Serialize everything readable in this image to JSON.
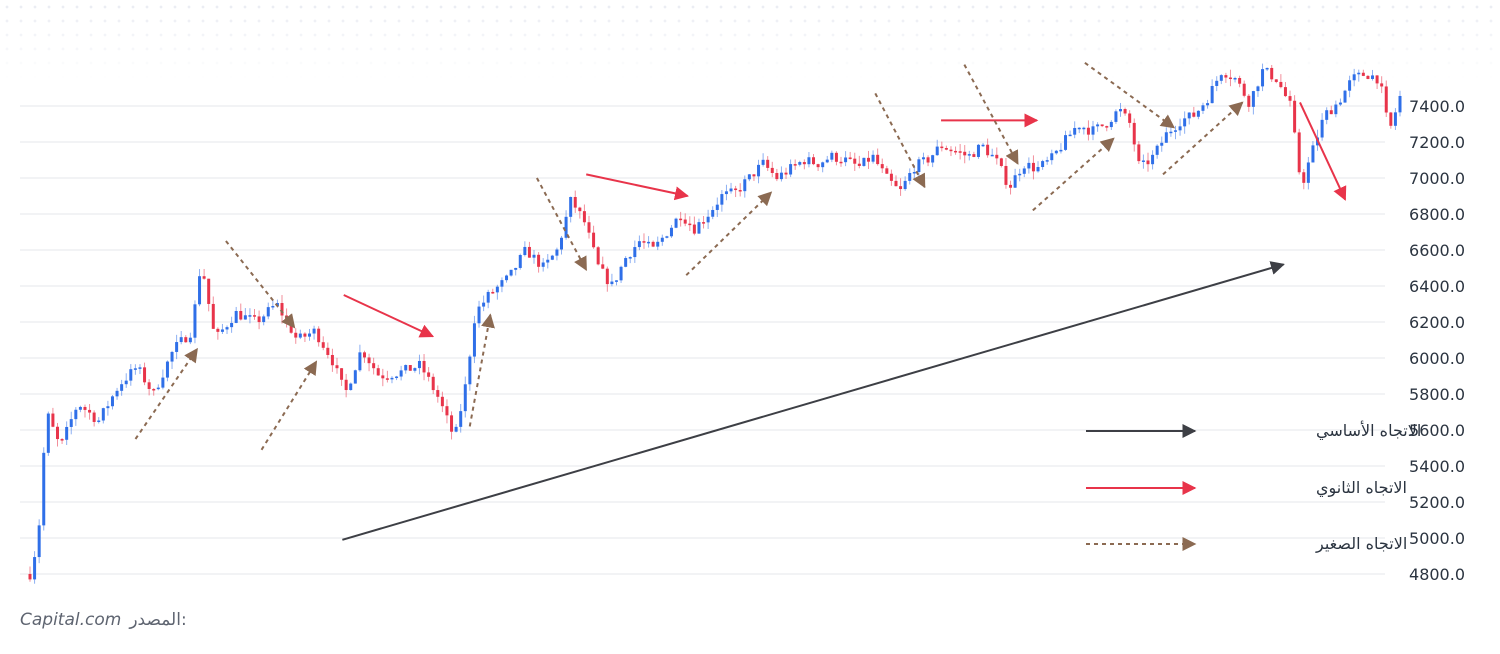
{
  "source": {
    "brand": "Capital.com",
    "label": "المصدر:"
  },
  "legend": [
    {
      "label": "الاتجاه الأساسي",
      "style": "solid",
      "color": "#3d3f45"
    },
    {
      "label": "الاتجاه الثانوي",
      "style": "solid",
      "color": "#e8344a"
    },
    {
      "label": "الاتجاه الصغير",
      "style": "dashed",
      "color": "#8b6a52"
    }
  ],
  "colors": {
    "up": "#2f6fe8",
    "down": "#e8344a",
    "grid": "#e5e7eb",
    "primary": "#3d3f45",
    "secondary": "#e8344a",
    "minor": "#8b6a52"
  },
  "chart_data": {
    "type": "candlestick",
    "y_ticks": [
      "7400.0",
      "7200.0",
      "7000.0",
      "6800.0",
      "6600.0",
      "6400.0",
      "6200.0",
      "6000.0",
      "5800.0",
      "5600.0",
      "5400.0",
      "5200.0",
      "5000.0",
      "4800.0"
    ],
    "ylim": [
      4780,
      7470
    ],
    "xlim": [
      0,
      1
    ],
    "grid": true,
    "legend_position": "bottom-right",
    "anchors": [
      [
        0.0,
        4800
      ],
      [
        0.006,
        5000
      ],
      [
        0.012,
        5700
      ],
      [
        0.022,
        5500
      ],
      [
        0.035,
        5750
      ],
      [
        0.05,
        5650
      ],
      [
        0.065,
        5850
      ],
      [
        0.078,
        5950
      ],
      [
        0.09,
        5800
      ],
      [
        0.105,
        6050
      ],
      [
        0.118,
        6150
      ],
      [
        0.125,
        6540
      ],
      [
        0.135,
        6100
      ],
      [
        0.15,
        6250
      ],
      [
        0.165,
        6200
      ],
      [
        0.18,
        6300
      ],
      [
        0.195,
        6100
      ],
      [
        0.208,
        6150
      ],
      [
        0.22,
        6000
      ],
      [
        0.23,
        5800
      ],
      [
        0.242,
        6050
      ],
      [
        0.255,
        5900
      ],
      [
        0.27,
        5920
      ],
      [
        0.285,
        5960
      ],
      [
        0.298,
        5780
      ],
      [
        0.31,
        5550
      ],
      [
        0.318,
        5850
      ],
      [
        0.325,
        6250
      ],
      [
        0.335,
        6350
      ],
      [
        0.35,
        6450
      ],
      [
        0.362,
        6600
      ],
      [
        0.375,
        6500
      ],
      [
        0.385,
        6600
      ],
      [
        0.395,
        6880
      ],
      [
        0.405,
        6750
      ],
      [
        0.415,
        6500
      ],
      [
        0.425,
        6400
      ],
      [
        0.435,
        6560
      ],
      [
        0.445,
        6650
      ],
      [
        0.455,
        6600
      ],
      [
        0.465,
        6700
      ],
      [
        0.475,
        6800
      ],
      [
        0.485,
        6720
      ],
      [
        0.495,
        6800
      ],
      [
        0.505,
        6900
      ],
      [
        0.515,
        6920
      ],
      [
        0.525,
        7000
      ],
      [
        0.535,
        7080
      ],
      [
        0.545,
        7000
      ],
      [
        0.555,
        7050
      ],
      [
        0.565,
        7100
      ],
      [
        0.575,
        7080
      ],
      [
        0.585,
        7120
      ],
      [
        0.595,
        7100
      ],
      [
        0.605,
        7060
      ],
      [
        0.615,
        7120
      ],
      [
        0.625,
        7000
      ],
      [
        0.635,
        6920
      ],
      [
        0.645,
        7060
      ],
      [
        0.655,
        7100
      ],
      [
        0.665,
        7180
      ],
      [
        0.675,
        7150
      ],
      [
        0.685,
        7120
      ],
      [
        0.695,
        7180
      ],
      [
        0.705,
        7100
      ],
      [
        0.715,
        6950
      ],
      [
        0.725,
        7080
      ],
      [
        0.735,
        7050
      ],
      [
        0.745,
        7100
      ],
      [
        0.755,
        7200
      ],
      [
        0.765,
        7300
      ],
      [
        0.775,
        7260
      ],
      [
        0.785,
        7300
      ],
      [
        0.795,
        7380
      ],
      [
        0.803,
        7300
      ],
      [
        0.81,
        7050
      ],
      [
        0.82,
        7120
      ],
      [
        0.83,
        7250
      ],
      [
        0.84,
        7320
      ],
      [
        0.85,
        7350
      ],
      [
        0.86,
        7450
      ],
      [
        0.87,
        7600
      ],
      [
        0.88,
        7550
      ],
      [
        0.89,
        7420
      ],
      [
        0.9,
        7600
      ],
      [
        0.91,
        7550
      ],
      [
        0.92,
        7400
      ],
      [
        0.928,
        6950
      ],
      [
        0.936,
        7150
      ],
      [
        0.945,
        7350
      ],
      [
        0.955,
        7420
      ],
      [
        0.965,
        7550
      ],
      [
        0.975,
        7580
      ],
      [
        0.985,
        7550
      ],
      [
        0.992,
        7250
      ],
      [
        1.0,
        7450
      ]
    ],
    "primary_trend": [
      [
        0.228,
        4990
      ],
      [
        0.915,
        6520
      ]
    ],
    "secondary_trends": [
      [
        [
          0.229,
          6350
        ],
        [
          0.294,
          6120
        ]
      ],
      [
        [
          0.406,
          7020
        ],
        [
          0.48,
          6900
        ]
      ],
      [
        [
          0.665,
          7320
        ],
        [
          0.735,
          7320
        ]
      ],
      [
        [
          0.927,
          7420
        ],
        [
          0.96,
          6880
        ]
      ]
    ],
    "minor_trends": [
      [
        [
          0.077,
          5550
        ],
        [
          0.122,
          6050
        ]
      ],
      [
        [
          0.143,
          6650
        ],
        [
          0.193,
          6170
        ]
      ],
      [
        [
          0.169,
          5490
        ],
        [
          0.209,
          5980
        ]
      ],
      [
        [
          0.321,
          5620
        ],
        [
          0.336,
          6240
        ]
      ],
      [
        [
          0.37,
          7000
        ],
        [
          0.406,
          6490
        ]
      ],
      [
        [
          0.479,
          6460
        ],
        [
          0.541,
          6920
        ]
      ],
      [
        [
          0.617,
          7470
        ],
        [
          0.653,
          6950
        ]
      ],
      [
        [
          0.682,
          7630
        ],
        [
          0.721,
          7080
        ]
      ],
      [
        [
          0.732,
          6820
        ],
        [
          0.791,
          7220
        ]
      ],
      [
        [
          0.77,
          7640
        ],
        [
          0.835,
          7280
        ]
      ],
      [
        [
          0.827,
          7020
        ],
        [
          0.885,
          7420
        ]
      ]
    ]
  }
}
